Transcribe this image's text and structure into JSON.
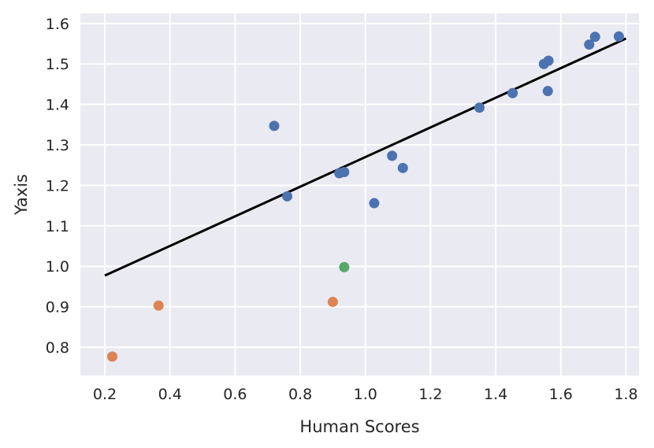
{
  "chart_data": {
    "type": "scatter",
    "title": "",
    "xlabel": "Human Scores",
    "ylabel": "Yaxis",
    "xlim": [
      0.125,
      1.84
    ],
    "ylim": [
      0.73,
      1.625
    ],
    "x_ticks": [
      "0.2",
      "0.4",
      "0.6",
      "0.8",
      "1.0",
      "1.2",
      "1.4",
      "1.6",
      "1.8"
    ],
    "y_ticks": [
      "0.8",
      "0.9",
      "1.0",
      "1.1",
      "1.2",
      "1.3",
      "1.4",
      "1.5",
      "1.6"
    ],
    "grid": true,
    "legend": "none",
    "colors": {
      "background": "#eaeaf2",
      "grid": "#ffffff",
      "blue": "#4c72b0",
      "orange": "#dd8452",
      "green": "#55a868",
      "line": "#000000"
    },
    "series": [
      {
        "color": "blue",
        "points": [
          [
            0.72,
            1.347
          ],
          [
            0.76,
            1.173
          ],
          [
            0.92,
            1.23
          ],
          [
            0.935,
            1.233
          ],
          [
            1.027,
            1.156
          ],
          [
            1.082,
            1.273
          ],
          [
            1.115,
            1.243
          ],
          [
            1.35,
            1.392
          ],
          [
            1.452,
            1.428
          ],
          [
            1.548,
            1.5
          ],
          [
            1.56,
            1.433
          ],
          [
            1.562,
            1.508
          ],
          [
            1.687,
            1.548
          ],
          [
            1.705,
            1.567
          ],
          [
            1.778,
            1.568
          ]
        ]
      },
      {
        "color": "orange",
        "points": [
          [
            0.223,
            0.777
          ],
          [
            0.365,
            0.903
          ],
          [
            0.9,
            0.912
          ]
        ]
      },
      {
        "color": "green",
        "points": [
          [
            0.935,
            0.998
          ]
        ]
      }
    ],
    "fit_line": {
      "x": [
        0.2,
        1.8
      ],
      "y": [
        0.977,
        1.563
      ]
    }
  }
}
